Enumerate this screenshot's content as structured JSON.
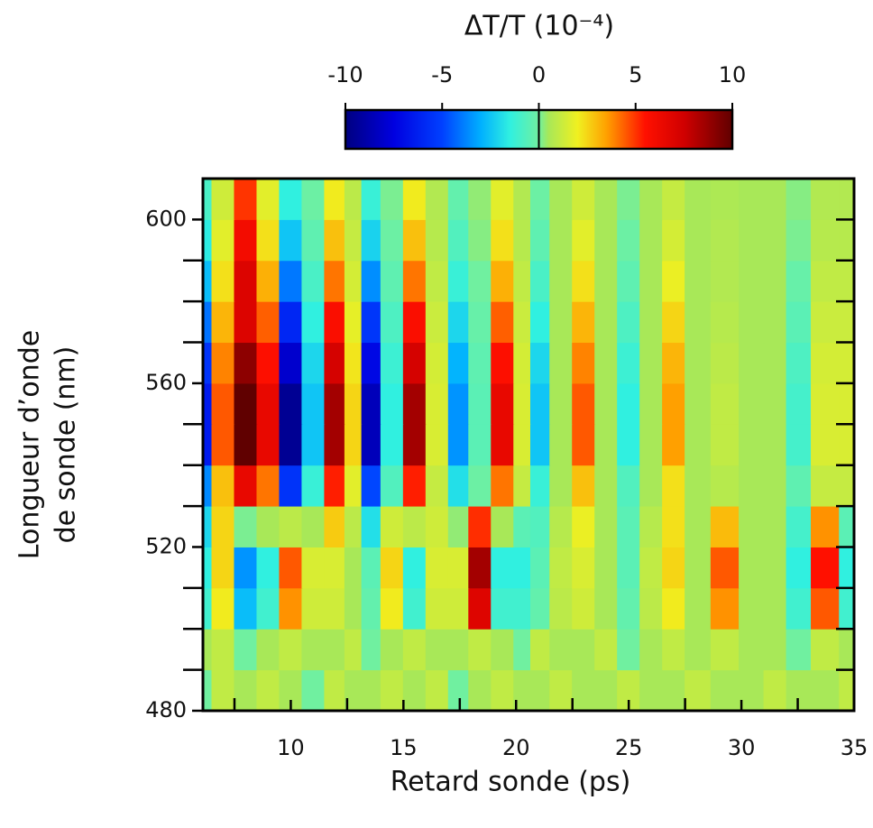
{
  "chart_data": {
    "type": "heatmap",
    "xlabel": "Retard sonde (ps)",
    "ylabel": [
      "Longueur d’onde",
      "de sonde (nm)"
    ],
    "colorbar_label": "ΔT/T (10⁻⁴)",
    "xlim": [
      6.1,
      35
    ],
    "ylim": [
      480,
      610
    ],
    "xticks": [
      10,
      15,
      20,
      25,
      30,
      35
    ],
    "xminorticks": [
      7.5,
      12.5,
      17.5,
      22.5,
      27.5,
      32.5
    ],
    "yticks": [
      480,
      520,
      560,
      600
    ],
    "yminorticks": [
      490,
      500,
      510,
      530,
      540,
      550,
      570,
      580,
      590
    ],
    "clim": [
      -10,
      10
    ],
    "cticks": [
      -10,
      -5,
      0,
      5,
      10
    ],
    "x": [
      6,
      7,
      8,
      9,
      10,
      11,
      12,
      12.8,
      13.5,
      14.5,
      15.5,
      16.5,
      17.5,
      18.3,
      19.5,
      20.3,
      21,
      22,
      23,
      24,
      25,
      26,
      27,
      28,
      29.3,
      30.5,
      31.5,
      32.5,
      33.7,
      35
    ],
    "y": [
      485,
      495,
      505,
      515,
      525,
      535,
      545,
      555,
      565,
      575,
      585,
      595,
      605
    ],
    "z": [
      [
        0,
        1,
        0.5,
        1,
        0.5,
        0,
        1,
        0.5,
        0.5,
        1,
        0.5,
        1,
        0,
        0.5,
        1,
        0.5,
        0.5,
        1,
        0.5,
        0.5,
        1,
        0.5,
        0.5,
        1,
        0.5,
        0.5,
        1,
        0.5,
        0.5,
        1
      ],
      [
        0.5,
        1,
        0,
        0.5,
        1,
        0.5,
        0.5,
        1,
        0,
        0.5,
        1,
        0.5,
        0.5,
        1,
        0.5,
        0,
        1,
        0.5,
        0.5,
        1,
        0,
        0.5,
        1,
        0.5,
        1,
        0.5,
        0.5,
        0,
        1,
        0.5
      ],
      [
        -1.1,
        2.1,
        -2.7,
        -1.1,
        3.7,
        1.3,
        1.3,
        0.5,
        -0.3,
        2.1,
        -1.1,
        1.3,
        1.3,
        6.9,
        -1.1,
        -1.1,
        -0.3,
        0.9,
        1.3,
        0.5,
        -0.3,
        0.9,
        2.1,
        0.5,
        3.7,
        0.5,
        0.5,
        -1.1,
        4.5,
        -1.1
      ],
      [
        -1.5,
        2.5,
        -3.5,
        -1.5,
        4.5,
        1.5,
        1.5,
        0.5,
        -0.5,
        2.5,
        -1.5,
        1.5,
        1.5,
        8.5,
        -1.5,
        -1.5,
        -0.5,
        1,
        1.5,
        0.5,
        -0.5,
        1,
        2.5,
        0.5,
        4.5,
        0.5,
        0.5,
        -1.5,
        5.5,
        -1.5
      ],
      [
        -2.1,
        2.5,
        0.1,
        0.5,
        0.9,
        0.5,
        2.7,
        0.9,
        -1.9,
        1.3,
        0.9,
        1.3,
        0.3,
        5.1,
        0.5,
        -0.5,
        -0.7,
        0.8,
        1.9,
        0.5,
        -0.5,
        0.8,
        2.3,
        0.5,
        3,
        0.5,
        0.5,
        -1,
        3.7,
        -0.5
      ],
      [
        -3.7,
        2.9,
        6.5,
        4.1,
        -5.5,
        -1.3,
        5.3,
        1.7,
        -4.9,
        -0.7,
        5.3,
        1.1,
        -1.9,
        -0.1,
        4.1,
        1.1,
        -1.3,
        0.5,
        2.9,
        0.5,
        -0.7,
        0.5,
        2.3,
        0.5,
        0.8,
        0.5,
        0.5,
        -0.4,
        1.1,
        1.1
      ],
      [
        -6.5,
        4.5,
        10,
        6.5,
        -9.5,
        -2.5,
        8.5,
        2.5,
        -8.5,
        -1.5,
        8.5,
        1.5,
        -3.5,
        -0.5,
        6.5,
        1.5,
        -2.5,
        0.5,
        4.5,
        0.5,
        -1.5,
        0.5,
        3.5,
        0.5,
        1,
        0.5,
        0.5,
        -1,
        1.5,
        1.5
      ],
      [
        -6.5,
        4.5,
        10,
        6.5,
        -9.5,
        -2.5,
        8.5,
        2.5,
        -8.5,
        -1.5,
        8.5,
        1.5,
        -3.5,
        -0.5,
        6.5,
        1.5,
        -2.5,
        0.5,
        4.5,
        0.5,
        -1.5,
        0.5,
        3.5,
        0.5,
        1,
        0.5,
        0.5,
        -1,
        1.5,
        1.5
      ],
      [
        -5.5,
        3.9,
        9,
        5.6,
        -8,
        -2.1,
        7.3,
        2.2,
        -7.2,
        -1.2,
        7.3,
        1.4,
        -2.9,
        -0.4,
        5.6,
        1.4,
        -2.1,
        0.5,
        3.9,
        0.5,
        -1.2,
        0.5,
        3.1,
        0.5,
        0.9,
        0.5,
        0.5,
        -0.8,
        1.4,
        1.4
      ],
      [
        -4.1,
        3.1,
        7,
        4.4,
        -6,
        -1.5,
        5.7,
        1.8,
        -5.4,
        -0.8,
        5.7,
        1.2,
        -2.1,
        -0.2,
        4.4,
        1.2,
        -1.5,
        0.5,
        3.1,
        0.5,
        -0.8,
        0.5,
        2.5,
        0.5,
        0.8,
        0.5,
        0.5,
        -0.5,
        1.2,
        1.2
      ],
      [
        -2.7,
        2.3,
        7,
        3.2,
        -4,
        -0.9,
        4.1,
        1.4,
        -3.6,
        -0.4,
        4.1,
        1,
        -1.3,
        0,
        3.2,
        1,
        -0.9,
        0.5,
        2.3,
        0.5,
        -0.4,
        0.5,
        1.9,
        0.5,
        0.7,
        0.5,
        0.5,
        -0.2,
        1,
        1
      ],
      [
        -1.6,
        1.7,
        6,
        2.3,
        -2.5,
        -0.4,
        2.9,
        1.1,
        -2.2,
        -0.1,
        2.9,
        0.8,
        -0.7,
        0.2,
        2.3,
        0.8,
        -0.4,
        0.5,
        1.7,
        0.5,
        -0.1,
        0.5,
        1.4,
        0.5,
        0.7,
        0.5,
        0.5,
        0.1,
        0.8,
        0.8
      ],
      [
        -0.9,
        1.3,
        5,
        1.7,
        -1.5,
        -0.1,
        2.1,
        0.9,
        -1.3,
        0.1,
        2.1,
        0.7,
        -0.3,
        0.3,
        1.7,
        0.7,
        -0.1,
        0.5,
        1.3,
        0.5,
        0.1,
        0.5,
        1.1,
        0.5,
        0.6,
        0.5,
        0.5,
        0.2,
        0.7,
        0.7
      ]
    ]
  }
}
